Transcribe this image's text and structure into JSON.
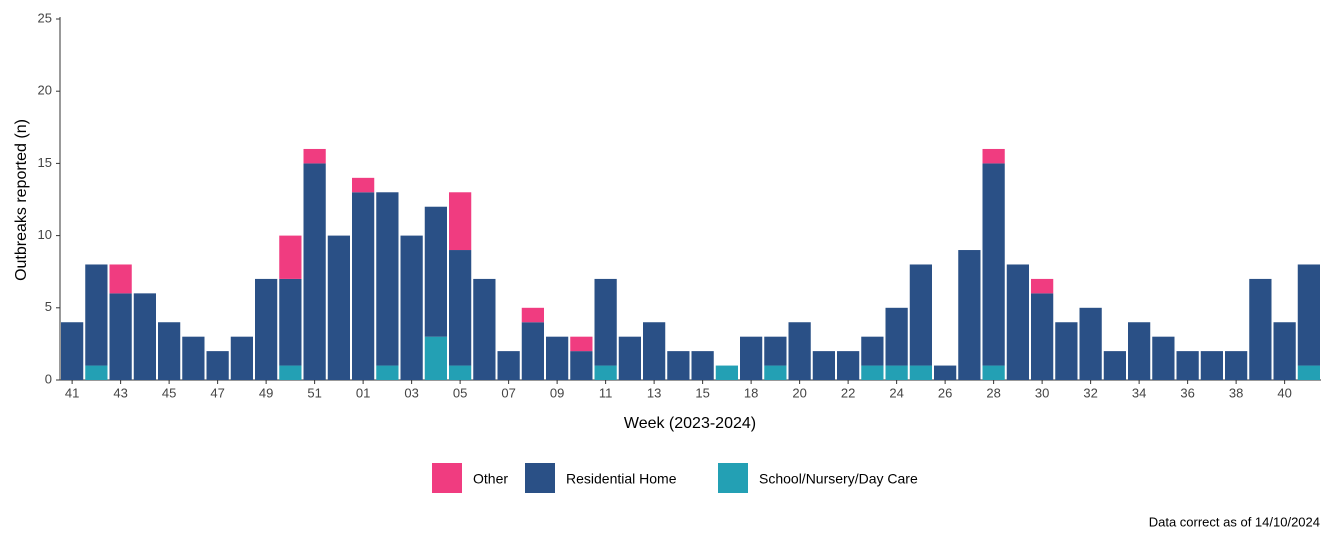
{
  "chart_data": {
    "type": "stacked_bar",
    "x_label": "Week (2023-2024)",
    "y_label": "Outbreaks reported (n)",
    "footnote": "Data correct as of 14/10/2024",
    "categories": [
      "41",
      null,
      "43",
      null,
      "45",
      null,
      "47",
      null,
      "49",
      null,
      "51",
      null,
      "01",
      null,
      "03",
      null,
      "05",
      null,
      "07",
      null,
      "09",
      null,
      "11",
      null,
      "13",
      null,
      "15",
      null,
      "18",
      null,
      "20",
      null,
      "22",
      null,
      "24",
      null,
      "26",
      null,
      "28",
      null,
      "30",
      null,
      "32",
      null,
      "34",
      null,
      "36",
      null,
      "38",
      null,
      "40",
      null
    ],
    "series": [
      {
        "name": "Other",
        "color": "#f03c80",
        "values": [
          0,
          0,
          2,
          0,
          0,
          0,
          0,
          0,
          0,
          3,
          1,
          0,
          1,
          0,
          0,
          0,
          4,
          0,
          0,
          1,
          0,
          1,
          0,
          0,
          0,
          0,
          0,
          0,
          0,
          0,
          0,
          0,
          0,
          0,
          0,
          0,
          0,
          0,
          1,
          0,
          1,
          0,
          0,
          0,
          0,
          0,
          0,
          0,
          0,
          0,
          0,
          0
        ]
      },
      {
        "name": "Residential Home",
        "color": "#2a5086",
        "values": [
          4,
          7,
          6,
          6,
          4,
          3,
          2,
          3,
          7,
          6,
          15,
          10,
          13,
          12,
          10,
          9,
          8,
          7,
          2,
          4,
          3,
          2,
          6,
          3,
          4,
          2,
          2,
          0,
          3,
          2,
          4,
          2,
          2,
          2,
          4,
          7,
          1,
          9,
          14,
          8,
          6,
          4,
          5,
          2,
          4,
          3,
          2,
          2,
          2,
          7,
          4,
          7
        ]
      },
      {
        "name": "School/Nursery/Day Care",
        "color": "#23a0b4",
        "values": [
          0,
          1,
          0,
          0,
          0,
          0,
          0,
          0,
          0,
          1,
          0,
          0,
          0,
          1,
          0,
          3,
          1,
          0,
          0,
          0,
          0,
          0,
          1,
          0,
          0,
          0,
          0,
          1,
          0,
          1,
          0,
          0,
          0,
          1,
          1,
          1,
          0,
          0,
          1,
          0,
          0,
          0,
          0,
          0,
          0,
          0,
          0,
          0,
          0,
          0,
          0,
          1
        ]
      }
    ],
    "ylim": [
      0,
      25
    ],
    "yticks": [
      0,
      5,
      10,
      15,
      20,
      25
    ]
  }
}
